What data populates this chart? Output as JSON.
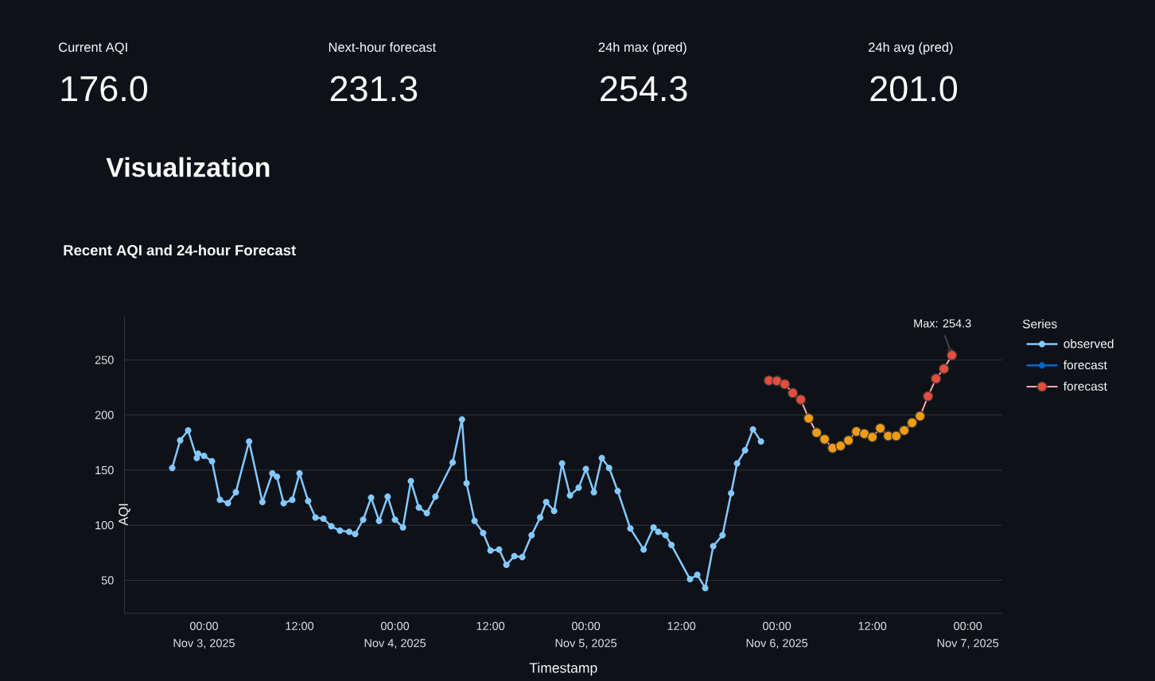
{
  "chart_data": [
    {
      "type": "other",
      "categories": [
        "Current AQI",
        "Next-hour forecast",
        "24h max (pred)",
        "24h avg (pred)"
      ],
      "value_labels": [
        "176.0",
        "231.3",
        "254.3",
        "201.0"
      ]
    },
    {
      "type": "line",
      "title": "Visualization",
      "subtitle": "Recent AQI and 24-hour Forecast",
      "xlabel": "Timestamp",
      "ylabel": "AQI",
      "legend_title": "Series",
      "legend": "right",
      "grid": "y",
      "marker": "circle",
      "xlim": [
        "2025-11-02T14:00",
        "2025-11-07T04:20"
      ],
      "ylim": [
        20,
        290
      ],
      "xticks": [
        {
          "value": "2025-11-03T00:00",
          "label": "00:00\nNov 3, 2025"
        },
        {
          "value": "2025-11-03T12:00",
          "label": "12:00"
        },
        {
          "value": "2025-11-04T00:00",
          "label": "00:00\nNov 4, 2025"
        },
        {
          "value": "2025-11-04T12:00",
          "label": "12:00"
        },
        {
          "value": "2025-11-05T00:00",
          "label": "00:00\nNov 5, 2025"
        },
        {
          "value": "2025-11-05T12:00",
          "label": "12:00"
        },
        {
          "value": "2025-11-06T00:00",
          "label": "00:00\nNov 6, 2025"
        },
        {
          "value": "2025-11-06T12:00",
          "label": "12:00"
        },
        {
          "value": "2025-11-07T00:00",
          "label": "00:00\nNov 7, 2025"
        }
      ],
      "yticks": [
        50,
        100,
        150,
        200,
        250
      ],
      "series": [
        {
          "name": "observed",
          "color": "#83c9ff",
          "x": [
            "2025-11-02T20:00",
            "2025-11-02T21:00",
            "2025-11-02T22:00",
            "2025-11-02T23:05",
            "2025-11-02T23:15",
            "2025-11-03T00:00",
            "2025-11-03T01:00",
            "2025-11-03T02:00",
            "2025-11-03T03:00",
            "2025-11-03T04:00",
            "2025-11-03T05:40",
            "2025-11-03T07:20",
            "2025-11-03T08:35",
            "2025-11-03T09:10",
            "2025-11-03T10:00",
            "2025-11-03T11:05",
            "2025-11-03T12:00",
            "2025-11-03T13:05",
            "2025-11-03T14:00",
            "2025-11-03T15:00",
            "2025-11-03T16:00",
            "2025-11-03T17:05",
            "2025-11-03T18:15",
            "2025-11-03T19:00",
            "2025-11-03T20:00",
            "2025-11-03T21:00",
            "2025-11-03T22:00",
            "2025-11-03T23:05",
            "2025-11-04T00:00",
            "2025-11-04T01:00",
            "2025-11-04T02:00",
            "2025-11-04T03:00",
            "2025-11-04T04:00",
            "2025-11-04T05:05",
            "2025-11-04T07:15",
            "2025-11-04T08:25",
            "2025-11-04T09:00",
            "2025-11-04T10:00",
            "2025-11-04T11:05",
            "2025-11-04T12:00",
            "2025-11-04T13:05",
            "2025-11-04T14:00",
            "2025-11-04T15:00",
            "2025-11-04T16:00",
            "2025-11-04T17:10",
            "2025-11-04T18:15",
            "2025-11-04T19:00",
            "2025-11-04T20:00",
            "2025-11-04T21:00",
            "2025-11-04T22:00",
            "2025-11-04T23:05",
            "2025-11-05T00:00",
            "2025-11-05T01:00",
            "2025-11-05T02:00",
            "2025-11-05T02:55",
            "2025-11-05T04:00",
            "2025-11-05T05:35",
            "2025-11-05T07:15",
            "2025-11-05T08:30",
            "2025-11-05T09:05",
            "2025-11-05T10:00",
            "2025-11-05T10:45",
            "2025-11-05T13:05",
            "2025-11-05T14:00",
            "2025-11-05T15:00",
            "2025-11-05T16:00",
            "2025-11-05T17:10",
            "2025-11-05T18:15",
            "2025-11-05T19:00",
            "2025-11-05T20:00",
            "2025-11-05T21:00",
            "2025-11-05T22:00"
          ],
          "values": [
            152,
            177,
            186,
            161,
            165,
            163,
            158,
            123,
            120,
            130,
            176,
            121,
            147,
            144,
            120,
            123,
            147,
            122,
            107,
            106,
            99,
            95,
            94,
            92,
            105,
            125,
            104,
            126,
            105,
            98,
            140,
            116,
            111,
            126,
            157,
            196,
            138,
            104,
            93,
            77,
            78,
            64,
            72,
            71,
            91,
            107,
            121,
            113,
            156,
            127,
            134,
            151,
            130,
            161,
            152,
            131,
            97,
            78,
            98,
            94,
            91,
            82,
            51,
            55,
            43,
            81,
            91,
            129,
            156,
            168,
            187,
            176
          ]
        },
        {
          "name": "forecast",
          "color": "#0068c9",
          "values": [
            null,
            null,
            null,
            null,
            null,
            null,
            null,
            null,
            null,
            null,
            null,
            null,
            null,
            null,
            null,
            null,
            null,
            null,
            null,
            null,
            null,
            null,
            null,
            null
          ]
        },
        {
          "name": "forecast",
          "color": "#ffabab",
          "colors": [
            "#e74c3c",
            "#e74c3c",
            "#e74c3c",
            "#e74c3c",
            "#e74c3c",
            "#f39c12",
            "#f39c12",
            "#f39c12",
            "#f39c12",
            "#f39c12",
            "#f39c12",
            "#f39c12",
            "#f39c12",
            "#f39c12",
            "#f39c12",
            "#f39c12",
            "#f39c12",
            "#f39c12",
            "#f39c12",
            "#f39c12",
            "#e74c3c",
            "#e74c3c",
            "#e74c3c",
            "#e74c3c"
          ],
          "x": [
            "2025-11-05T23:00",
            "2025-11-06T00:00",
            "2025-11-06T01:00",
            "2025-11-06T02:00",
            "2025-11-06T03:00",
            "2025-11-06T04:00",
            "2025-11-06T05:00",
            "2025-11-06T06:00",
            "2025-11-06T07:00",
            "2025-11-06T08:00",
            "2025-11-06T09:00",
            "2025-11-06T10:00",
            "2025-11-06T11:00",
            "2025-11-06T12:00",
            "2025-11-06T13:00",
            "2025-11-06T14:00",
            "2025-11-06T15:00",
            "2025-11-06T16:00",
            "2025-11-06T17:00",
            "2025-11-06T18:00",
            "2025-11-06T19:00",
            "2025-11-06T20:00",
            "2025-11-06T21:00",
            "2025-11-06T22:00"
          ],
          "values": [
            231.3,
            231,
            228,
            220,
            214,
            197,
            184,
            178,
            170,
            172,
            177,
            185,
            183,
            180,
            188,
            181,
            181,
            186,
            193,
            199,
            217,
            233,
            242,
            254.3
          ]
        }
      ],
      "annotations": [
        {
          "text": "Max: 254.3",
          "x": "2025-11-06T22:00",
          "y": 254.3
        }
      ]
    }
  ]
}
